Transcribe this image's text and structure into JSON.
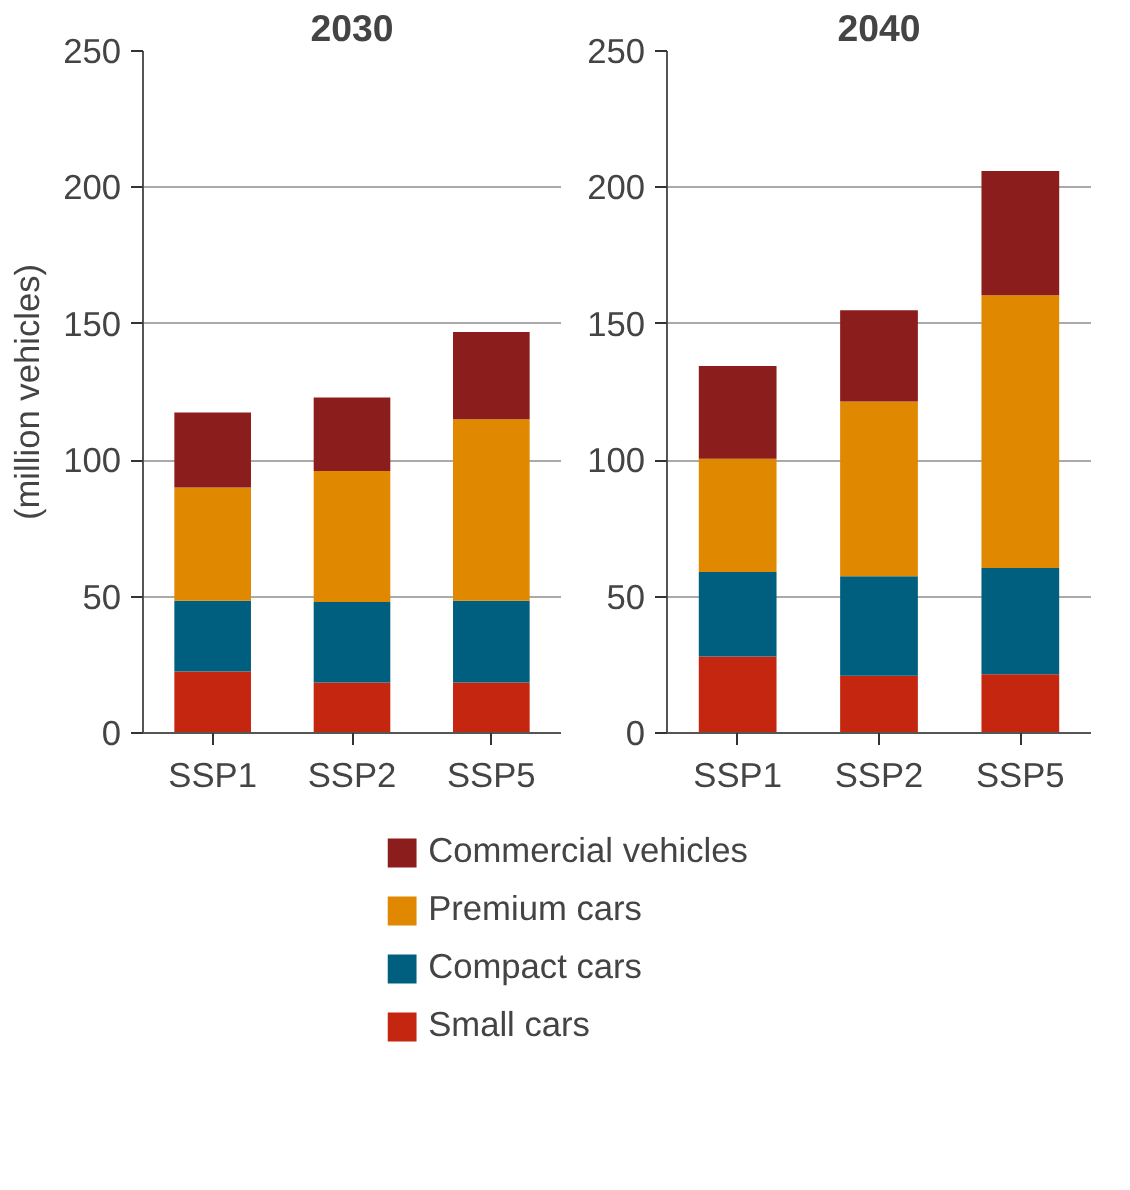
{
  "chart_data": [
    {
      "type": "bar",
      "title": "2030",
      "ylabel": "(million vehicles)",
      "categories": [
        "SSP1",
        "SSP2",
        "SSP5"
      ],
      "stacked": true,
      "ylim": [
        0,
        250
      ],
      "yticks": [
        0,
        50,
        100,
        150,
        200,
        250
      ],
      "grid": "y",
      "series": [
        {
          "color": "#c4260f",
          "values": [
            22.5,
            18.5,
            18.5
          ]
        },
        {
          "color": "#005f7f",
          "values": [
            26,
            29.5,
            30
          ]
        },
        {
          "color": "#df8800",
          "values": [
            41.5,
            48,
            66.5
          ]
        },
        {
          "color": "#8b1e1c",
          "values": [
            27.5,
            27,
            32
          ]
        }
      ]
    },
    {
      "type": "bar",
      "title": "2040",
      "categories": [
        "SSP1",
        "SSP2",
        "SSP5"
      ],
      "stacked": true,
      "ylim": [
        0,
        250
      ],
      "yticks": [
        0,
        50,
        100,
        150,
        200,
        250
      ],
      "grid": "y",
      "legend": "bottom",
      "series": [
        {
          "name": "Small cars",
          "color": "#c4260f",
          "values": [
            28,
            21,
            21.5
          ]
        },
        {
          "name": "Compact cars",
          "color": "#005f7f",
          "values": [
            31,
            36.5,
            39
          ]
        },
        {
          "name": "Premium cars",
          "color": "#df8800",
          "values": [
            41.5,
            64,
            100
          ]
        },
        {
          "name": "Commercial vehicles",
          "color": "#8b1e1c",
          "values": [
            34,
            33.5,
            45.5
          ]
        }
      ]
    }
  ]
}
